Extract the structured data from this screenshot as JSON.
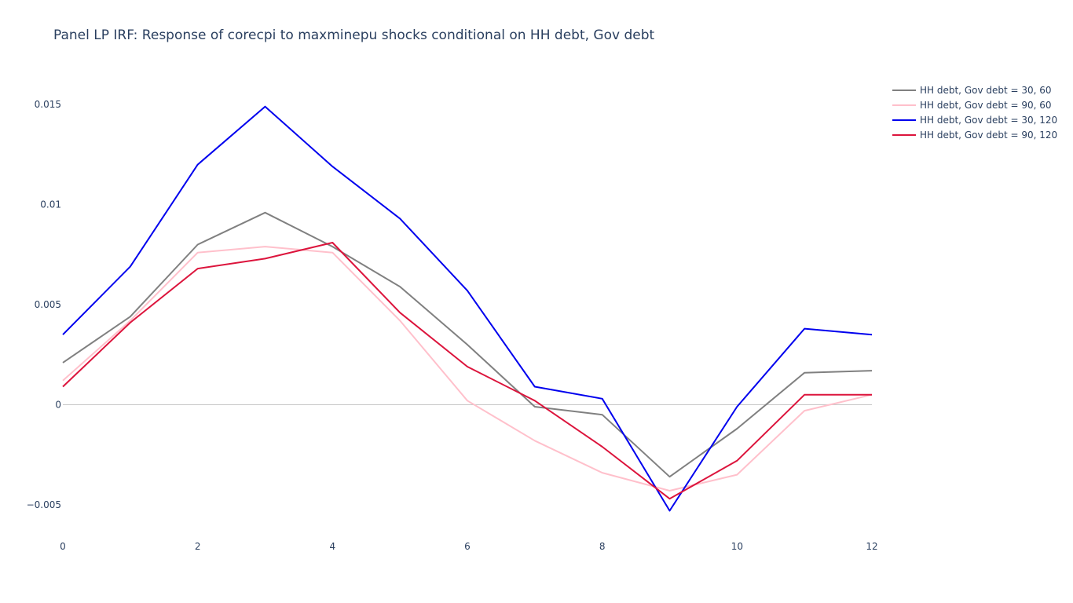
{
  "chart_data": {
    "type": "line",
    "title": "Panel LP IRF: Response of corecpi to maxminepu shocks conditional on HH debt, Gov debt",
    "xlabel": "",
    "ylabel": "",
    "x": [
      0,
      1,
      2,
      3,
      4,
      5,
      6,
      7,
      8,
      9,
      10,
      11,
      12
    ],
    "xlim": [
      0,
      12
    ],
    "ylim": [
      -0.0063,
      0.0163
    ],
    "x_ticks": [
      {
        "value": 0,
        "label": "0"
      },
      {
        "value": 2,
        "label": "2"
      },
      {
        "value": 4,
        "label": "4"
      },
      {
        "value": 6,
        "label": "6"
      },
      {
        "value": 8,
        "label": "8"
      },
      {
        "value": 10,
        "label": "10"
      },
      {
        "value": 12,
        "label": "12"
      }
    ],
    "y_ticks": [
      {
        "value": 0.015,
        "label": "0.015"
      },
      {
        "value": 0.01,
        "label": "0.01"
      },
      {
        "value": 0.005,
        "label": "0.005"
      },
      {
        "value": 0,
        "label": "0"
      },
      {
        "value": -0.005,
        "label": "−0.005"
      }
    ],
    "zero_line": true,
    "grid": false,
    "legend_position": "top-right",
    "series": [
      {
        "name": "HH debt, Gov debt = 30, 60",
        "color": "#808080",
        "values": [
          0.0021,
          0.0044,
          0.008,
          0.0096,
          0.0079,
          0.0059,
          0.003,
          -0.0001,
          -0.0005,
          -0.0036,
          -0.0012,
          0.0016,
          0.0017
        ]
      },
      {
        "name": "HH debt, Gov debt = 90, 60",
        "color": "#ffc0cb",
        "values": [
          0.0012,
          0.0042,
          0.0076,
          0.0079,
          0.0076,
          0.0042,
          0.0002,
          -0.0018,
          -0.0034,
          -0.0043,
          -0.0035,
          -0.0003,
          0.0005
        ]
      },
      {
        "name": "HH debt, Gov debt = 30, 120",
        "color": "#0000ee",
        "values": [
          0.0035,
          0.0069,
          0.012,
          0.0149,
          0.0119,
          0.0093,
          0.0057,
          0.0009,
          0.0003,
          -0.0053,
          -0.0001,
          0.0038,
          0.0035
        ]
      },
      {
        "name": "HH debt, Gov debt = 90, 120",
        "color": "#dc143c",
        "values": [
          0.0009,
          0.0041,
          0.0068,
          0.0073,
          0.0081,
          0.0046,
          0.0019,
          0.0002,
          -0.0021,
          -0.0047,
          -0.0028,
          0.0005,
          0.0005
        ]
      }
    ]
  }
}
